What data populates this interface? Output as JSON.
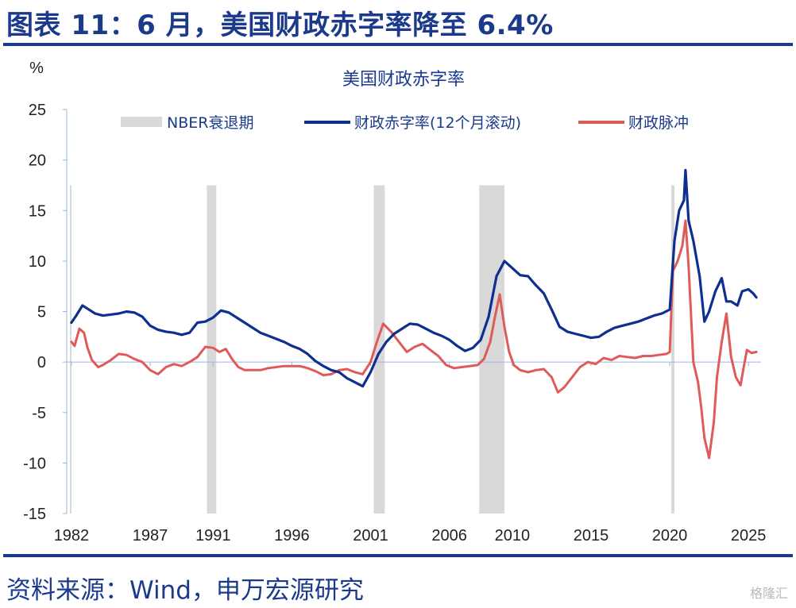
{
  "figure": {
    "title": "图表 11：6 月，美国财政赤字率降至 6.4%",
    "source": "资料来源：Wind，申万宏源研究",
    "watermark": "格隆汇"
  },
  "colors": {
    "title": "#1b3a8c",
    "deficit_line": "#0d2f8f",
    "impulse_line": "#e05a5a",
    "recession_band": "#d9d9d9",
    "zero_line": "#9bb7dc"
  },
  "chart_data": {
    "type": "line",
    "title": "美国财政赤字率",
    "ylabel": "%",
    "xlabel": "",
    "ylim": [
      -15,
      25
    ],
    "xlim": [
      1981.7,
      2025.8
    ],
    "yticks": [
      -15,
      -10,
      -5,
      0,
      5,
      10,
      15,
      20,
      25
    ],
    "xticks": [
      1982,
      1987,
      1991,
      1996,
      2001,
      2006,
      2010,
      2015,
      2020,
      2025
    ],
    "legend": [
      "NBER衰退期",
      "财政赤字率(12个月滚动)",
      "财政脉冲"
    ],
    "legend_position": "top",
    "grid": false,
    "recessions": [
      {
        "start": 1981.9,
        "end": 1982.0
      },
      {
        "start": 1990.6,
        "end": 1991.2
      },
      {
        "start": 2001.2,
        "end": 2001.9
      },
      {
        "start": 2007.9,
        "end": 2009.5
      },
      {
        "start": 2020.1,
        "end": 2020.3
      }
    ],
    "series": [
      {
        "name": "财政赤字率(12个月滚动)",
        "x": [
          1982.0,
          1982.3,
          1982.7,
          1983.0,
          1983.5,
          1984.0,
          1984.5,
          1985.0,
          1985.5,
          1986.0,
          1986.5,
          1987.0,
          1987.5,
          1988.0,
          1988.5,
          1989.0,
          1989.5,
          1990.0,
          1990.5,
          1991.0,
          1991.5,
          1992.0,
          1992.5,
          1993.0,
          1993.5,
          1994.0,
          1994.5,
          1995.0,
          1995.5,
          1996.0,
          1996.5,
          1997.0,
          1997.5,
          1998.0,
          1998.5,
          1999.0,
          1999.5,
          2000.0,
          2000.5,
          2001.0,
          2001.5,
          2002.0,
          2002.5,
          2003.0,
          2003.5,
          2004.0,
          2004.5,
          2005.0,
          2005.5,
          2006.0,
          2006.5,
          2007.0,
          2007.5,
          2008.0,
          2008.5,
          2009.0,
          2009.5,
          2010.0,
          2010.5,
          2011.0,
          2011.5,
          2012.0,
          2012.5,
          2013.0,
          2013.5,
          2014.0,
          2014.5,
          2015.0,
          2015.5,
          2016.0,
          2016.5,
          2017.0,
          2017.5,
          2018.0,
          2018.5,
          2019.0,
          2019.5,
          2020.0,
          2020.3,
          2020.6,
          2020.9,
          2021.0,
          2021.2,
          2021.5,
          2021.9,
          2022.2,
          2022.5,
          2022.9,
          2023.3,
          2023.6,
          2023.9,
          2024.3,
          2024.6,
          2025.0,
          2025.3,
          2025.5
        ],
        "values": [
          3.9,
          4.6,
          5.6,
          5.3,
          4.8,
          4.6,
          4.7,
          4.8,
          5.0,
          4.9,
          4.5,
          3.6,
          3.2,
          3.0,
          2.9,
          2.7,
          2.9,
          3.9,
          4.0,
          4.4,
          5.1,
          4.9,
          4.4,
          3.9,
          3.4,
          2.9,
          2.6,
          2.3,
          2.0,
          1.6,
          1.3,
          0.8,
          0.1,
          -0.4,
          -0.8,
          -1.0,
          -1.6,
          -2.0,
          -2.4,
          -1.0,
          0.8,
          2.0,
          2.8,
          3.3,
          3.8,
          3.7,
          3.3,
          2.9,
          2.6,
          2.2,
          1.6,
          1.1,
          1.4,
          2.2,
          4.5,
          8.5,
          10.0,
          9.3,
          8.6,
          8.5,
          7.6,
          6.8,
          5.2,
          3.5,
          3.0,
          2.8,
          2.6,
          2.4,
          2.5,
          3.0,
          3.4,
          3.6,
          3.8,
          4.0,
          4.3,
          4.6,
          4.8,
          5.2,
          12.0,
          15.0,
          16.0,
          19.0,
          14.0,
          12.0,
          8.5,
          4.0,
          5.0,
          7.0,
          8.3,
          6.0,
          6.0,
          5.6,
          7.0,
          7.2,
          6.8,
          6.4
        ]
      },
      {
        "name": "财政脉冲",
        "x": [
          1982.0,
          1982.2,
          1982.5,
          1982.8,
          1983.0,
          1983.3,
          1983.7,
          1984.0,
          1984.5,
          1985.0,
          1985.5,
          1986.0,
          1986.5,
          1987.0,
          1987.5,
          1988.0,
          1988.5,
          1989.0,
          1989.5,
          1990.0,
          1990.5,
          1991.0,
          1991.4,
          1991.8,
          1992.2,
          1992.6,
          1993.0,
          1993.5,
          1994.0,
          1994.5,
          1995.0,
          1995.5,
          1996.0,
          1996.5,
          1997.0,
          1997.5,
          1998.0,
          1998.5,
          1999.0,
          1999.5,
          2000.0,
          2000.5,
          2001.0,
          2001.4,
          2001.8,
          2002.3,
          2002.8,
          2003.3,
          2003.8,
          2004.3,
          2004.8,
          2005.3,
          2005.8,
          2006.3,
          2006.8,
          2007.3,
          2007.8,
          2008.2,
          2008.6,
          2008.9,
          2009.2,
          2009.5,
          2009.8,
          2010.1,
          2010.5,
          2011.0,
          2011.5,
          2012.0,
          2012.5,
          2012.9,
          2013.3,
          2013.8,
          2014.3,
          2014.8,
          2015.3,
          2015.8,
          2016.3,
          2016.8,
          2017.3,
          2017.8,
          2018.3,
          2018.8,
          2019.3,
          2019.8,
          2020.0,
          2020.2,
          2020.5,
          2020.8,
          2021.0,
          2021.2,
          2021.5,
          2021.8,
          2022.0,
          2022.2,
          2022.5,
          2022.8,
          2023.0,
          2023.3,
          2023.6,
          2023.9,
          2024.2,
          2024.5,
          2024.7,
          2024.9,
          2025.2,
          2025.5
        ],
        "values": [
          2.0,
          1.6,
          3.3,
          2.9,
          1.5,
          0.2,
          -0.5,
          -0.3,
          0.2,
          0.8,
          0.7,
          0.3,
          0.0,
          -0.8,
          -1.2,
          -0.5,
          -0.2,
          -0.4,
          0.0,
          0.5,
          1.5,
          1.4,
          1.0,
          1.3,
          0.3,
          -0.5,
          -0.8,
          -0.8,
          -0.8,
          -0.6,
          -0.5,
          -0.4,
          -0.4,
          -0.4,
          -0.6,
          -0.9,
          -1.3,
          -1.2,
          -0.8,
          -0.7,
          -1.0,
          -1.2,
          0.0,
          2.0,
          3.8,
          3.0,
          2.0,
          1.0,
          1.5,
          1.8,
          1.2,
          0.6,
          -0.3,
          -0.6,
          -0.5,
          -0.4,
          -0.3,
          0.3,
          2.0,
          4.5,
          6.7,
          3.5,
          1.0,
          -0.3,
          -0.8,
          -1.0,
          -0.8,
          -0.7,
          -1.5,
          -3.0,
          -2.5,
          -1.5,
          -0.5,
          0.0,
          -0.2,
          0.4,
          0.2,
          0.6,
          0.5,
          0.4,
          0.6,
          0.6,
          0.7,
          0.8,
          1.0,
          9.0,
          10.0,
          11.5,
          14.0,
          9.5,
          0.0,
          -2.0,
          -4.5,
          -7.5,
          -9.5,
          -6.0,
          -1.5,
          2.0,
          4.8,
          0.5,
          -1.5,
          -2.3,
          -0.5,
          1.2,
          0.9,
          1.0
        ]
      }
    ]
  }
}
